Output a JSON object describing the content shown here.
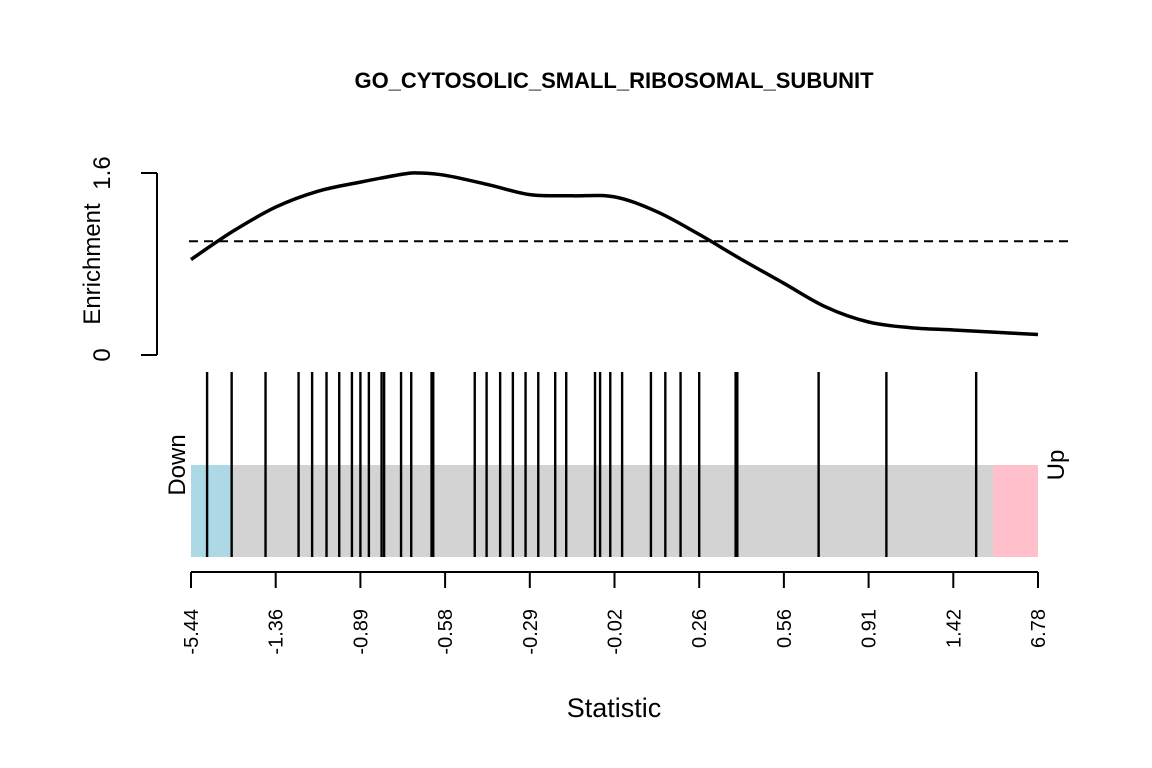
{
  "chart_data": {
    "type": "line",
    "title": "GO_CYTOSOLIC_SMALL_RIBOSOMAL_SUBUNIT",
    "ylabel": "Enrichment",
    "xlabel": "Statistic",
    "ylim": [
      0,
      1.6
    ],
    "y_ticks": [
      "0",
      "1.6"
    ],
    "reference_line": 1,
    "x_tick_labels": [
      "-5.44",
      "-1.36",
      "-0.89",
      "-0.58",
      "-0.29",
      "-0.02",
      "0.26",
      "0.56",
      "0.91",
      "1.42",
      "6.78"
    ],
    "down_label": "Down",
    "up_label": "Up",
    "colors": {
      "line": "#000000",
      "down_band": "#add8e6",
      "middle_band": "#d3d3d3",
      "up_band": "#ffc0cb"
    },
    "regions": [
      {
        "name": "Down",
        "from_rank": 0,
        "to_rank": 0.048
      },
      {
        "name": "Middle",
        "from_rank": 0.048,
        "to_rank": 0.947
      },
      {
        "name": "Up",
        "from_rank": 0.947,
        "to_rank": 1
      }
    ],
    "series": [
      {
        "rank": [
          0,
          0.05,
          0.1,
          0.15,
          0.2,
          0.25,
          0.27,
          0.3,
          0.35,
          0.4,
          0.45,
          0.5,
          0.55,
          0.6,
          0.65,
          0.7,
          0.75,
          0.8,
          0.85,
          0.9,
          0.95,
          1.0
        ],
        "values": [
          0.84,
          1.09,
          1.3,
          1.44,
          1.52,
          1.59,
          1.6,
          1.58,
          1.5,
          1.41,
          1.4,
          1.39,
          1.26,
          1.06,
          0.84,
          0.63,
          0.42,
          0.29,
          0.24,
          0.22,
          0.2,
          0.18
        ]
      }
    ],
    "barcode_ranks": [
      0.019,
      0.048,
      0.088,
      0.127,
      0.143,
      0.16,
      0.175,
      0.19,
      0.2,
      0.21,
      0.225,
      0.228,
      0.248,
      0.26,
      0.284,
      0.286,
      0.335,
      0.349,
      0.365,
      0.38,
      0.395,
      0.41,
      0.43,
      0.443,
      0.477,
      0.483,
      0.495,
      0.509,
      0.543,
      0.56,
      0.578,
      0.6,
      0.643,
      0.645,
      0.741,
      0.821,
      0.927
    ]
  }
}
